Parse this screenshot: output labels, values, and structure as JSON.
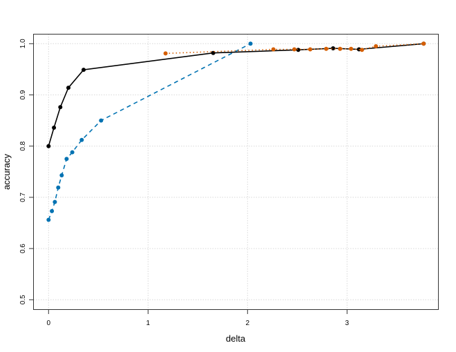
{
  "chart_data": {
    "type": "line",
    "title": "",
    "xlabel": "delta",
    "ylabel": "accuracy",
    "xlim": [
      -0.15,
      3.91
    ],
    "ylim": [
      0.48,
      1.02
    ],
    "xticks": [
      0,
      1,
      2,
      3
    ],
    "xtick_labels": [
      "0",
      "1",
      "2",
      "3"
    ],
    "yticks": [
      0.5,
      0.6,
      0.7,
      0.8,
      0.9,
      1.0
    ],
    "ytick_labels": [
      "0.5",
      "0.6",
      "0.7",
      "0.8",
      "0.9",
      "1.0"
    ],
    "grid": true,
    "legend": null,
    "series": [
      {
        "name": "black-solid",
        "color": "#000000",
        "line_style": "solid",
        "x": [
          0,
          0.054,
          0.118,
          0.199,
          0.352,
          1.655,
          2.51,
          2.86,
          3.12,
          3.77
        ],
        "y": [
          0.8,
          0.836,
          0.876,
          0.914,
          0.949,
          0.982,
          0.988,
          0.991,
          0.989,
          1.0
        ]
      },
      {
        "name": "blue-dashed",
        "color": "#0072B2",
        "line_style": "dashed",
        "x": [
          0,
          0.033,
          0.063,
          0.097,
          0.132,
          0.181,
          0.238,
          0.333,
          0.528,
          2.03
        ],
        "y": [
          0.656,
          0.673,
          0.691,
          0.719,
          0.743,
          0.775,
          0.788,
          0.812,
          0.85,
          1.0
        ]
      },
      {
        "name": "orange-dotted",
        "color": "#D55E00",
        "line_style": "dotted",
        "x": [
          1.176,
          2.26,
          2.47,
          2.63,
          2.79,
          2.93,
          3.04,
          3.15,
          3.29,
          3.77
        ],
        "y": [
          0.981,
          0.989,
          0.989,
          0.989,
          0.99,
          0.99,
          0.99,
          0.988,
          0.995,
          1.0
        ]
      }
    ]
  }
}
